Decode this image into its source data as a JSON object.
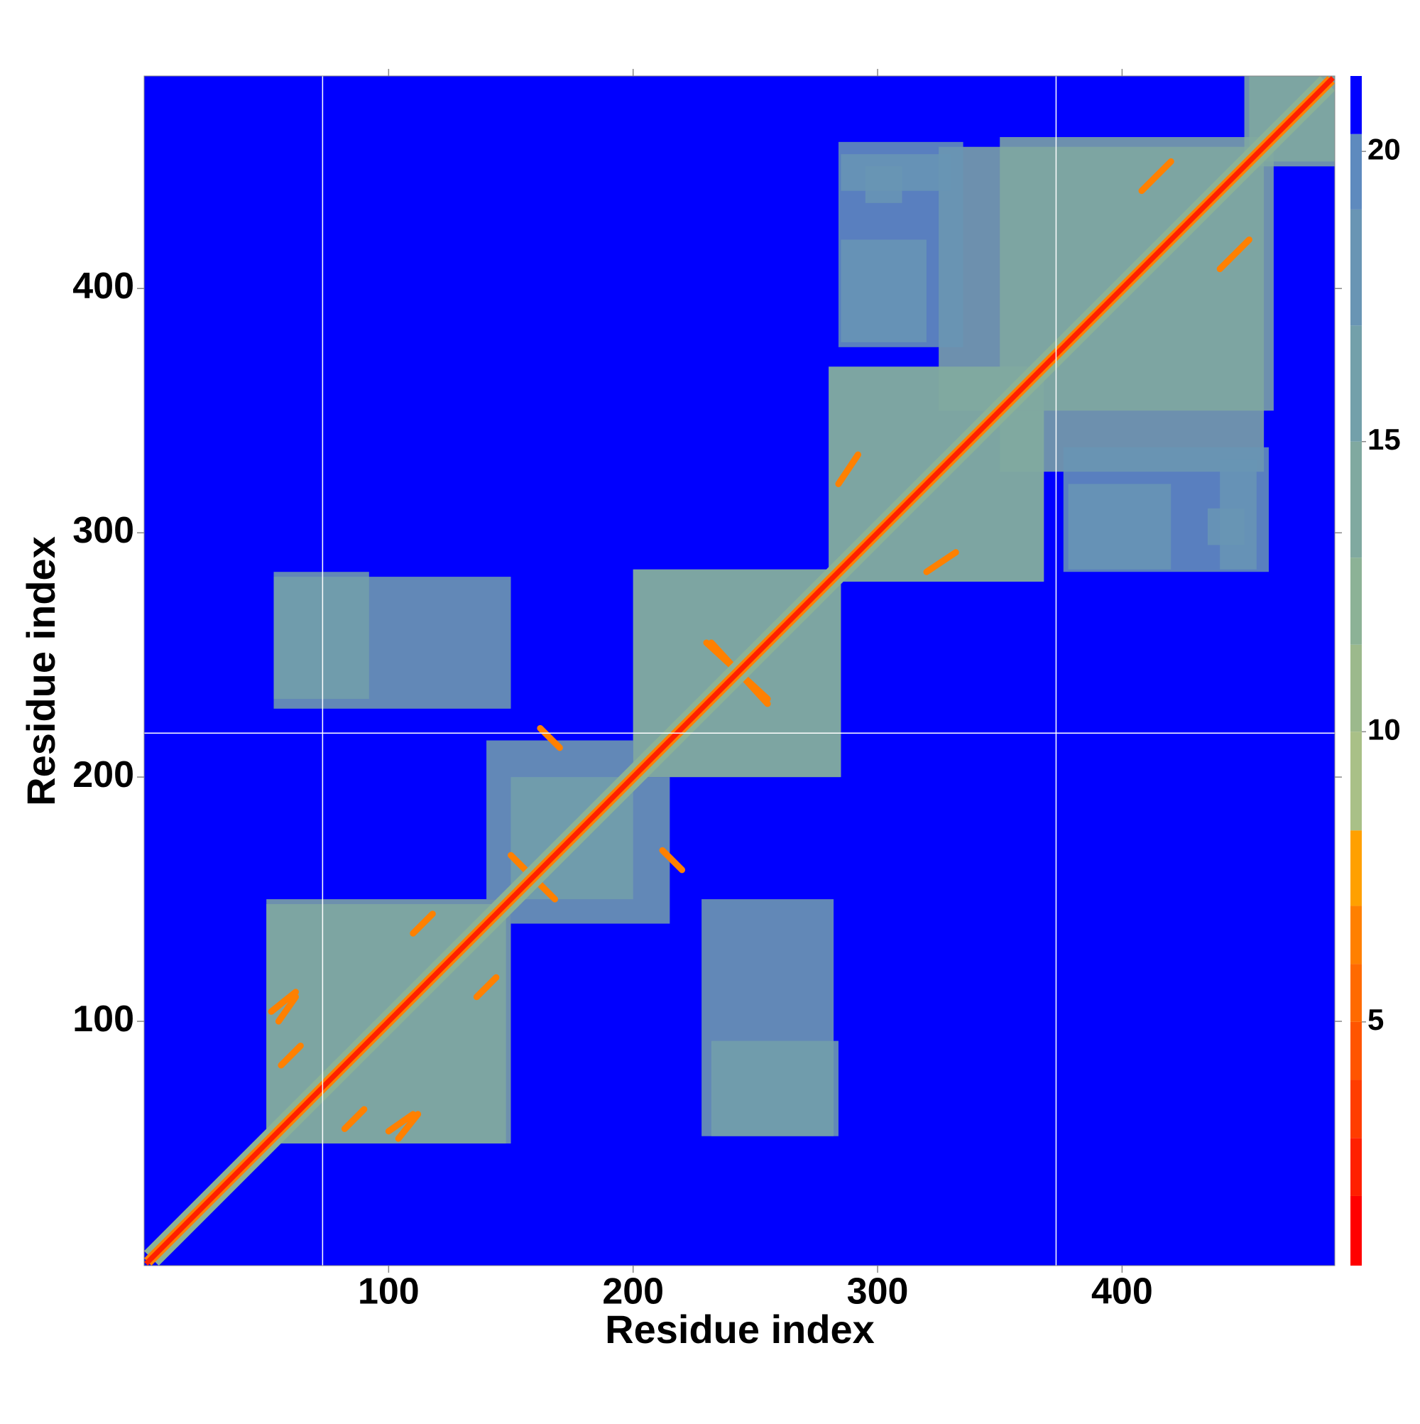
{
  "chart_data": {
    "type": "contact_map",
    "x_label": "Residue index",
    "y_label": "Residue index",
    "xlim": [
      0,
      487
    ],
    "ylim": [
      0,
      487
    ],
    "xticks": [
      100,
      200,
      300,
      400
    ],
    "yticks": [
      100,
      200,
      300,
      400
    ],
    "symmetric": true,
    "background_value": 21,
    "reference_lines": {
      "x": [
        73,
        373
      ],
      "y": [
        218
      ],
      "color": "#ffffff"
    },
    "clim": [
      0.8,
      21.3
    ],
    "colorbar_ticks": [
      5,
      10,
      15,
      20
    ],
    "colorbands": [
      {
        "value": 0.8,
        "color": "#ff0000"
      },
      {
        "value": 2,
        "color": "#ff2000"
      },
      {
        "value": 3,
        "color": "#ff3d00"
      },
      {
        "value": 4,
        "color": "#ff5500"
      },
      {
        "value": 5,
        "color": "#ff6a00"
      },
      {
        "value": 6,
        "color": "#ff8000"
      },
      {
        "value": 7,
        "color": "#ffa000"
      },
      {
        "value": 8.3,
        "color": "#a9c087"
      },
      {
        "value": 10,
        "color": "#9cb98c"
      },
      {
        "value": 11.5,
        "color": "#8cb296"
      },
      {
        "value": 13,
        "color": "#80a9a0"
      },
      {
        "value": 15,
        "color": "#73a0aa"
      },
      {
        "value": 17,
        "color": "#6995b4"
      },
      {
        "value": 19,
        "color": "#5e8abe"
      },
      {
        "value": 20.3,
        "color": "#0000ff"
      }
    ],
    "patches": [
      {
        "x": [
          50,
          150
        ],
        "y": [
          50,
          148
        ],
        "value": 13
      },
      {
        "x": [
          280,
          368
        ],
        "y": [
          280,
          368
        ],
        "value": 13
      },
      {
        "x": [
          350,
          458
        ],
        "y": [
          325,
          462
        ],
        "value": 13
      },
      {
        "x": [
          452,
          487
        ],
        "y": [
          450,
          487
        ],
        "value": 14
      },
      {
        "x": [
          140,
          200
        ],
        "y": [
          150,
          215
        ],
        "value": 15
      },
      {
        "x": [
          200,
          285
        ],
        "y": [
          200,
          285
        ],
        "value": 14
      },
      {
        "x": [
          53,
          150
        ],
        "y": [
          228,
          282
        ],
        "value": 15
      },
      {
        "x": [
          232,
          284
        ],
        "y": [
          53,
          92
        ],
        "value": 16
      },
      {
        "x": [
          284,
          335
        ],
        "y": [
          376,
          460
        ],
        "value": 17
      },
      {
        "x": [
          378,
          420
        ],
        "y": [
          285,
          320
        ],
        "value": 17
      },
      {
        "x": [
          440,
          455
        ],
        "y": [
          285,
          330
        ],
        "value": 18
      },
      {
        "x": [
          295,
          310
        ],
        "y": [
          435,
          450
        ],
        "value": 18
      }
    ],
    "strands": [
      {
        "x": [
          52,
          62
        ],
        "y": [
          104,
          112
        ],
        "value": 6
      },
      {
        "x": [
          56,
          64
        ],
        "y": [
          82,
          90
        ],
        "value": 6
      },
      {
        "x": [
          100,
          110
        ],
        "y": [
          55,
          62
        ],
        "value": 6
      },
      {
        "x": [
          110,
          118
        ],
        "y": [
          136,
          144
        ],
        "value": 6
      },
      {
        "x": [
          152,
          168
        ],
        "y": [
          166,
          150
        ],
        "value": 6
      },
      {
        "x": [
          232,
          255
        ],
        "y": [
          230,
          255
        ],
        "value": 6
      },
      {
        "x": [
          232,
          255
        ],
        "y": [
          255,
          230
        ],
        "value": 6
      },
      {
        "x": [
          162,
          170
        ],
        "y": [
          220,
          212
        ],
        "value": 6
      },
      {
        "x": [
          320,
          332
        ],
        "y": [
          284,
          292
        ],
        "value": 6
      },
      {
        "x": [
          408,
          420
        ],
        "y": [
          440,
          452
        ],
        "value": 6
      },
      {
        "x": [
          437,
          455
        ],
        "y": [
          440,
          458
        ],
        "value": 6
      }
    ],
    "diagonal": [
      {
        "halfwidth": 6,
        "value": 12
      },
      {
        "halfwidth": 3,
        "value": 6
      },
      {
        "halfwidth": 1.5,
        "value": 2
      }
    ]
  }
}
